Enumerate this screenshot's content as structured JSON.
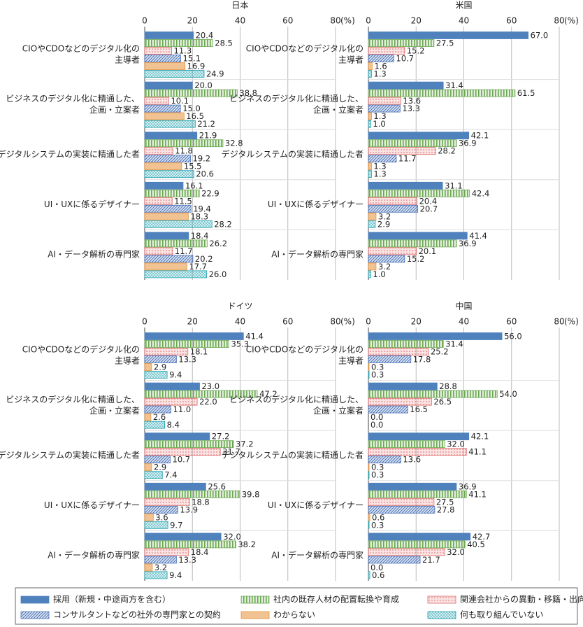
{
  "chart_data": [
    {
      "type": "bar",
      "orientation": "horizontal",
      "title": "日本",
      "xlim": [
        0,
        80
      ],
      "xticks": [
        0,
        20,
        40,
        60,
        80
      ],
      "xlabel": "(%)",
      "categories": [
        [
          "CIOやCDOなどのデジタル化の",
          "主導者"
        ],
        [
          "ビジネスのデジタル化に精通した、",
          "企画・立案者"
        ],
        [
          "デジタルシステムの実装に精通した者"
        ],
        [
          "UI・UXに係るデザイナー"
        ],
        [
          "AI・データ解析の専門家"
        ]
      ],
      "series": [
        {
          "name": "採用（新規・中途両方を含む）",
          "color": "#4f81bd",
          "hatch": "solid",
          "values": [
            20.4,
            20.0,
            21.9,
            16.1,
            18.4
          ],
          "value_labels": [
            "20.4",
            "20.0",
            "21.9",
            "16.1",
            "18.4"
          ]
        },
        {
          "name": "社内の既存人材の配置転換や育成",
          "color": "#6aa84f",
          "hatch": "vertical",
          "values": [
            28.5,
            38.8,
            32.8,
            22.9,
            26.2
          ],
          "value_labels": [
            "28.5",
            "38.8",
            "32.8",
            "22.9",
            "26.2"
          ]
        },
        {
          "name": "関連会社からの異動・移籍・出向",
          "color": "#e06666",
          "hatch": "dots",
          "values": [
            11.3,
            10.1,
            11.8,
            11.5,
            11.7
          ],
          "value_labels": [
            "11.3",
            "10.1",
            "11.8",
            "11.5",
            "11.7"
          ]
        },
        {
          "name": "コンサルタントなどの社外の専門家との契約",
          "color": "#4a72b8",
          "hatch": "diagonal",
          "values": [
            15.1,
            15.0,
            19.2,
            19.4,
            20.2
          ],
          "value_labels": [
            "15.1",
            "15.0",
            "19.2",
            "19.4",
            "20.2"
          ]
        },
        {
          "name": "わからない",
          "color": "#e69138",
          "hatch": "light",
          "values": [
            16.9,
            16.5,
            15.5,
            18.3,
            17.7
          ],
          "value_labels": [
            "16.9",
            "16.5",
            "15.5",
            "18.3",
            "17.7"
          ]
        },
        {
          "name": "何も取り組んでいない",
          "color": "#1b9fae",
          "hatch": "grid",
          "values": [
            24.9,
            21.2,
            20.6,
            28.2,
            26.0
          ],
          "value_labels": [
            "24.9",
            "21.2",
            "20.6",
            "28.2",
            "26.0"
          ]
        }
      ]
    },
    {
      "type": "bar",
      "orientation": "horizontal",
      "title": "米国",
      "xlim": [
        0,
        80
      ],
      "xticks": [
        0,
        20,
        40,
        60,
        80
      ],
      "xlabel": "(%)",
      "categories": [
        [
          "CIOやCDOなどのデジタル化の",
          "主導者"
        ],
        [
          "ビジネスのデジタル化に精通した、",
          "企画・立案者"
        ],
        [
          "デジタルシステムの実装に精通した者"
        ],
        [
          "UI・UXに係るデザイナー"
        ],
        [
          "AI・データ解析の専門家"
        ]
      ],
      "series": [
        {
          "name": "採用（新規・中途両方を含む）",
          "color": "#4f81bd",
          "hatch": "solid",
          "values": [
            67.0,
            31.4,
            42.1,
            31.1,
            41.4
          ],
          "value_labels": [
            "67.0",
            "31.4",
            "42.1",
            "31.1",
            "41.4"
          ]
        },
        {
          "name": "社内の既存人材の配置転換や育成",
          "color": "#6aa84f",
          "hatch": "vertical",
          "values": [
            27.5,
            61.5,
            36.9,
            42.4,
            36.9
          ],
          "value_labels": [
            "27.5",
            "61.5",
            "36.9",
            "42.4",
            "36.9"
          ]
        },
        {
          "name": "関連会社からの異動・移籍・出向",
          "color": "#e06666",
          "hatch": "dots",
          "values": [
            15.2,
            13.6,
            28.2,
            20.4,
            20.1
          ],
          "value_labels": [
            "15.2",
            "13.6",
            "28.2",
            "20.4",
            "20.1"
          ]
        },
        {
          "name": "コンサルタントなどの社外の専門家との契約",
          "color": "#4a72b8",
          "hatch": "diagonal",
          "values": [
            10.7,
            13.3,
            11.7,
            20.7,
            15.2
          ],
          "value_labels": [
            "10.7",
            "13.3",
            "11.7",
            "20.7",
            "15.2"
          ]
        },
        {
          "name": "わからない",
          "color": "#e69138",
          "hatch": "light",
          "values": [
            1.6,
            1.3,
            1.3,
            3.2,
            3.2
          ],
          "value_labels": [
            "1.6",
            "1.3",
            "1.3",
            "3.2",
            "3.2"
          ]
        },
        {
          "name": "何も取り組んでいない",
          "color": "#1b9fae",
          "hatch": "grid",
          "values": [
            1.3,
            1.0,
            1.3,
            2.9,
            1.0
          ],
          "value_labels": [
            "1.3",
            "1.0",
            "1.3",
            "2.9",
            "1.0"
          ]
        }
      ]
    },
    {
      "type": "bar",
      "orientation": "horizontal",
      "title": "ドイツ",
      "xlim": [
        0,
        80
      ],
      "xticks": [
        0,
        20,
        40,
        60,
        80
      ],
      "xlabel": "(%)",
      "categories": [
        [
          "CIOやCDOなどのデジタル化の",
          "主導者"
        ],
        [
          "ビジネスのデジタル化に精通した、",
          "企画・立案者"
        ],
        [
          "デジタルシステムの実装に精通した者"
        ],
        [
          "UI・UXに係るデザイナー"
        ],
        [
          "AI・データ解析の専門家"
        ]
      ],
      "series": [
        {
          "name": "採用（新規・中途両方を含む）",
          "color": "#4f81bd",
          "hatch": "solid",
          "values": [
            41.4,
            23.0,
            27.2,
            25.6,
            32.0
          ],
          "value_labels": [
            "41.4",
            "23.0",
            "27.2",
            "25.6",
            "32.0"
          ]
        },
        {
          "name": "社内の既存人材の配置転換や育成",
          "color": "#6aa84f",
          "hatch": "vertical",
          "values": [
            35.3,
            47.2,
            37.2,
            39.8,
            38.2
          ],
          "value_labels": [
            "35.3",
            "47.2",
            "37.2",
            "39.8",
            "38.2"
          ]
        },
        {
          "name": "関連会社からの異動・移籍・出向",
          "color": "#e06666",
          "hatch": "dots",
          "values": [
            18.1,
            22.0,
            31.7,
            18.8,
            18.4
          ],
          "value_labels": [
            "18.1",
            "22.0",
            "31.7",
            "18.8",
            "18.4"
          ]
        },
        {
          "name": "コンサルタントなどの社外の専門家との契約",
          "color": "#4a72b8",
          "hatch": "diagonal",
          "values": [
            13.3,
            11.0,
            10.7,
            13.9,
            13.3
          ],
          "value_labels": [
            "13.3",
            "11.0",
            "10.7",
            "13.9",
            "13.3"
          ]
        },
        {
          "name": "わからない",
          "color": "#e69138",
          "hatch": "light",
          "values": [
            2.9,
            2.6,
            2.9,
            3.6,
            3.2
          ],
          "value_labels": [
            "2.9",
            "2.6",
            "2.9",
            "3.6",
            "3.2"
          ]
        },
        {
          "name": "何も取り組んでいない",
          "color": "#1b9fae",
          "hatch": "grid",
          "values": [
            9.4,
            8.4,
            7.4,
            9.7,
            9.4
          ],
          "value_labels": [
            "9.4",
            "8.4",
            "7.4",
            "9.7",
            "9.4"
          ]
        }
      ]
    },
    {
      "type": "bar",
      "orientation": "horizontal",
      "title": "中国",
      "xlim": [
        0,
        80
      ],
      "xticks": [
        0,
        20,
        40,
        60,
        80
      ],
      "xlabel": "(%)",
      "categories": [
        [
          "CIOやCDOなどのデジタル化の",
          "主導者"
        ],
        [
          "ビジネスのデジタル化に精通した、",
          "企画・立案者"
        ],
        [
          "デジタルシステムの実装に精通した者"
        ],
        [
          "UI・UXに係るデザイナー"
        ],
        [
          "AI・データ解析の専門家"
        ]
      ],
      "series": [
        {
          "name": "採用（新規・中途両方を含む）",
          "color": "#4f81bd",
          "hatch": "solid",
          "values": [
            56.0,
            28.8,
            42.1,
            36.9,
            42.7
          ],
          "value_labels": [
            "56.0",
            "28.8",
            "42.1",
            "36.9",
            "42.7"
          ]
        },
        {
          "name": "社内の既存人材の配置転換や育成",
          "color": "#6aa84f",
          "hatch": "vertical",
          "values": [
            31.4,
            54.0,
            32.0,
            41.1,
            40.5
          ],
          "value_labels": [
            "31.4",
            "54.0",
            "32.0",
            "41.1",
            "40.5"
          ]
        },
        {
          "name": "関連会社からの異動・移籍・出向",
          "color": "#e06666",
          "hatch": "dots",
          "values": [
            25.2,
            26.5,
            41.1,
            27.5,
            32.0
          ],
          "value_labels": [
            "25.2",
            "26.5",
            "41.1",
            "27.5",
            "32.0"
          ]
        },
        {
          "name": "コンサルタントなどの社外の専門家との契約",
          "color": "#4a72b8",
          "hatch": "diagonal",
          "values": [
            17.8,
            16.5,
            13.6,
            27.8,
            21.7
          ],
          "value_labels": [
            "17.8",
            "16.5",
            "13.6",
            "27.8",
            "21.7"
          ]
        },
        {
          "name": "わからない",
          "color": "#e69138",
          "hatch": "light",
          "values": [
            0.3,
            0.0,
            0.3,
            0.6,
            0.0
          ],
          "value_labels": [
            "0.3",
            "0.0",
            "0.3",
            "0.6",
            "0.0"
          ]
        },
        {
          "name": "何も取り組んでいない",
          "color": "#1b9fae",
          "hatch": "grid",
          "values": [
            0.3,
            0.0,
            0.3,
            0.3,
            0.6
          ],
          "value_labels": [
            "0.3",
            "0.0",
            "0.3",
            "0.3",
            "0.6"
          ]
        }
      ]
    }
  ]
}
